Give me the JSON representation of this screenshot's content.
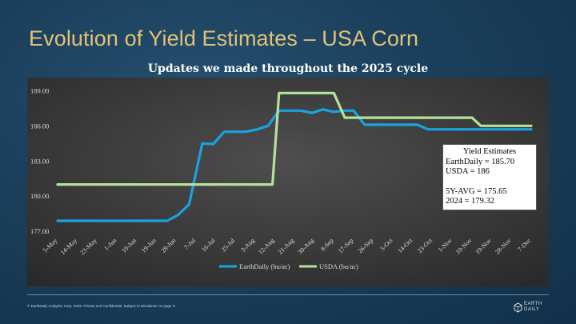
{
  "slide": {
    "title": "Evolution of Yield Estimates – USA Corn",
    "footer": "© EarthDaily Analytics Corp. 2025. Private and Confidential. Subject to Disclaimer on page X.",
    "logo_line1": "EARTH",
    "logo_line2": "DAILY"
  },
  "legend_box": {
    "title": "Yield Estimates",
    "line1": "EarthDaily = 185.70",
    "line2": "USDA = 186",
    "line3": "5Y-AVG = 175.65",
    "line4": "2024 = 179.32"
  },
  "colors": {
    "earthdaily": "#1aa3e0",
    "usda": "#b5e29a",
    "title": "#e3c276"
  },
  "chart_data": {
    "type": "line",
    "title": "Updates we made throughout the 2025 cycle",
    "xlabel": "",
    "ylabel": "",
    "ylim": [
      176.6,
      189.3
    ],
    "yticks": [
      "177.00",
      "180.00",
      "183.00",
      "186.00",
      "189.00"
    ],
    "ytick_values": [
      177,
      180,
      183,
      186,
      189
    ],
    "x_tick_labels": [
      "5-May",
      "14-May",
      "23-May",
      "1-Jun",
      "10-Jun",
      "19-Jun",
      "28-Jun",
      "7-Jul",
      "16-Jul",
      "25-Jul",
      "3-Aug",
      "12-Aug",
      "21-Aug",
      "30-Aug",
      "8-Sep",
      "17-Sep",
      "26-Sep",
      "5-Oct",
      "14-Oct",
      "23-Oct",
      "1-Nov",
      "10-Nov",
      "19-Nov",
      "28-Nov",
      "7-Dec"
    ],
    "x_range": [
      "5-May",
      "7-Dec"
    ],
    "grid": false,
    "legend_position": "bottom",
    "series": [
      {
        "name": "EarthDaily (bu/ac)",
        "color": "#1aa3e0",
        "points": [
          [
            "5-May",
            177.9
          ],
          [
            "24-Jun",
            177.9
          ],
          [
            "29-Jun",
            178.4
          ],
          [
            "4-Jul",
            179.3
          ],
          [
            "10-Jul",
            184.5
          ],
          [
            "15-Jul",
            184.45
          ],
          [
            "20-Jul",
            185.5
          ],
          [
            "25-Jul",
            185.5
          ],
          [
            "30-Jul",
            185.5
          ],
          [
            "4-Aug",
            185.7
          ],
          [
            "9-Aug",
            186.0
          ],
          [
            "14-Aug",
            187.3
          ],
          [
            "19-Aug",
            187.3
          ],
          [
            "24-Aug",
            187.3
          ],
          [
            "29-Aug",
            187.1
          ],
          [
            "3-Sep",
            187.4
          ],
          [
            "8-Sep",
            187.2
          ],
          [
            "13-Sep",
            187.3
          ],
          [
            "17-Sep",
            187.3
          ],
          [
            "22-Sep",
            186.1
          ],
          [
            "27-Sep",
            186.1
          ],
          [
            "16-Oct",
            186.1
          ],
          [
            "21-Oct",
            185.7
          ],
          [
            "7-Dec",
            185.7
          ]
        ]
      },
      {
        "name": "USDA (bu/ac)",
        "color": "#b5e29a",
        "points": [
          [
            "5-May",
            181.0
          ],
          [
            "11-Aug",
            181.0
          ],
          [
            "14-Aug",
            188.8
          ],
          [
            "8-Sep",
            188.8
          ],
          [
            "13-Sep",
            186.7
          ],
          [
            "10-Nov",
            186.7
          ],
          [
            "14-Nov",
            186.0
          ],
          [
            "7-Dec",
            186.0
          ]
        ]
      }
    ]
  }
}
